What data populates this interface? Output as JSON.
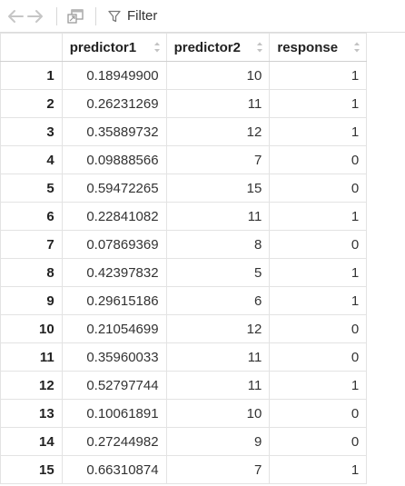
{
  "toolbar": {
    "filter_label": "Filter"
  },
  "table": {
    "columns": [
      "predictor1",
      "predictor2",
      "response"
    ],
    "rows": [
      {
        "row": "1",
        "predictor1": "0.18949900",
        "predictor2": "10",
        "response": "1"
      },
      {
        "row": "2",
        "predictor1": "0.26231269",
        "predictor2": "11",
        "response": "1"
      },
      {
        "row": "3",
        "predictor1": "0.35889732",
        "predictor2": "12",
        "response": "1"
      },
      {
        "row": "4",
        "predictor1": "0.09888566",
        "predictor2": "7",
        "response": "0"
      },
      {
        "row": "5",
        "predictor1": "0.59472265",
        "predictor2": "15",
        "response": "0"
      },
      {
        "row": "6",
        "predictor1": "0.22841082",
        "predictor2": "11",
        "response": "1"
      },
      {
        "row": "7",
        "predictor1": "0.07869369",
        "predictor2": "8",
        "response": "0"
      },
      {
        "row": "8",
        "predictor1": "0.42397832",
        "predictor2": "5",
        "response": "1"
      },
      {
        "row": "9",
        "predictor1": "0.29615186",
        "predictor2": "6",
        "response": "1"
      },
      {
        "row": "10",
        "predictor1": "0.21054699",
        "predictor2": "12",
        "response": "0"
      },
      {
        "row": "11",
        "predictor1": "0.35960033",
        "predictor2": "11",
        "response": "0"
      },
      {
        "row": "12",
        "predictor1": "0.52797744",
        "predictor2": "11",
        "response": "1"
      },
      {
        "row": "13",
        "predictor1": "0.10061891",
        "predictor2": "10",
        "response": "0"
      },
      {
        "row": "14",
        "predictor1": "0.27244982",
        "predictor2": "9",
        "response": "0"
      },
      {
        "row": "15",
        "predictor1": "0.66310874",
        "predictor2": "7",
        "response": "1"
      }
    ]
  },
  "icons": {
    "back": "arrow-left-icon",
    "forward": "arrow-right-icon",
    "popout": "popout-window-icon",
    "filter": "funnel-icon",
    "sort": "sort-updown-icon"
  },
  "colors": {
    "icon_disabled": "#c6c6c6",
    "icon_gray": "#8a8a8a",
    "grid_line": "#e3e3e3",
    "text": "#333333"
  }
}
